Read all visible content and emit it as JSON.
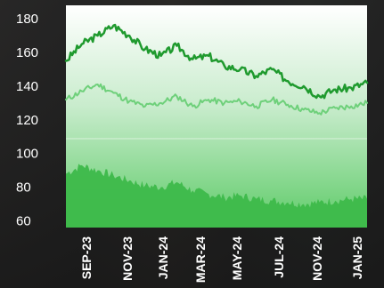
{
  "chart_data": {
    "type": "area",
    "title": "",
    "xlabel": "",
    "ylabel": "",
    "ylim": [
      56,
      188
    ],
    "yticks": [
      180,
      160,
      140,
      120,
      100,
      80,
      60
    ],
    "xtick_labels": [
      "SEP-23",
      "NOV-23",
      "JAN-24",
      "MAR-24",
      "MAY-24",
      "JUL-24",
      "NOV-24",
      "JAN-25"
    ],
    "x": [
      "2023-07",
      "2023-08",
      "2023-09",
      "2023-10",
      "2023-11",
      "2023-12",
      "2024-01",
      "2024-02",
      "2024-03",
      "2024-04",
      "2024-05",
      "2024-06",
      "2024-07",
      "2024-08",
      "2024-09",
      "2024-10",
      "2024-11",
      "2024-12",
      "2025-01",
      "2025-02"
    ],
    "series": [
      {
        "values": [
          155,
          165,
          170,
          176,
          170,
          162,
          158,
          164,
          156,
          158,
          152,
          150,
          146,
          150,
          143,
          140,
          134,
          138,
          139,
          142
        ],
        "color": "#1f9a2e"
      },
      {
        "values": [
          132,
          137,
          141,
          136,
          131,
          128,
          130,
          134,
          128,
          132,
          130,
          131,
          128,
          132,
          129,
          126,
          124,
          127,
          128,
          130
        ],
        "color": "#6ed07a"
      },
      {
        "values": [
          88,
          93,
          90,
          87,
          84,
          81,
          80,
          83,
          78,
          76,
          74,
          75,
          73,
          72,
          71,
          70,
          71,
          72,
          73,
          73
        ],
        "color": "#3fbe4c"
      }
    ],
    "grid": false,
    "legend": "none",
    "colors": {
      "panel_top": "#ffffff",
      "panel_bottom": "#5ecb68",
      "volume_fill": "#3db94a"
    }
  }
}
